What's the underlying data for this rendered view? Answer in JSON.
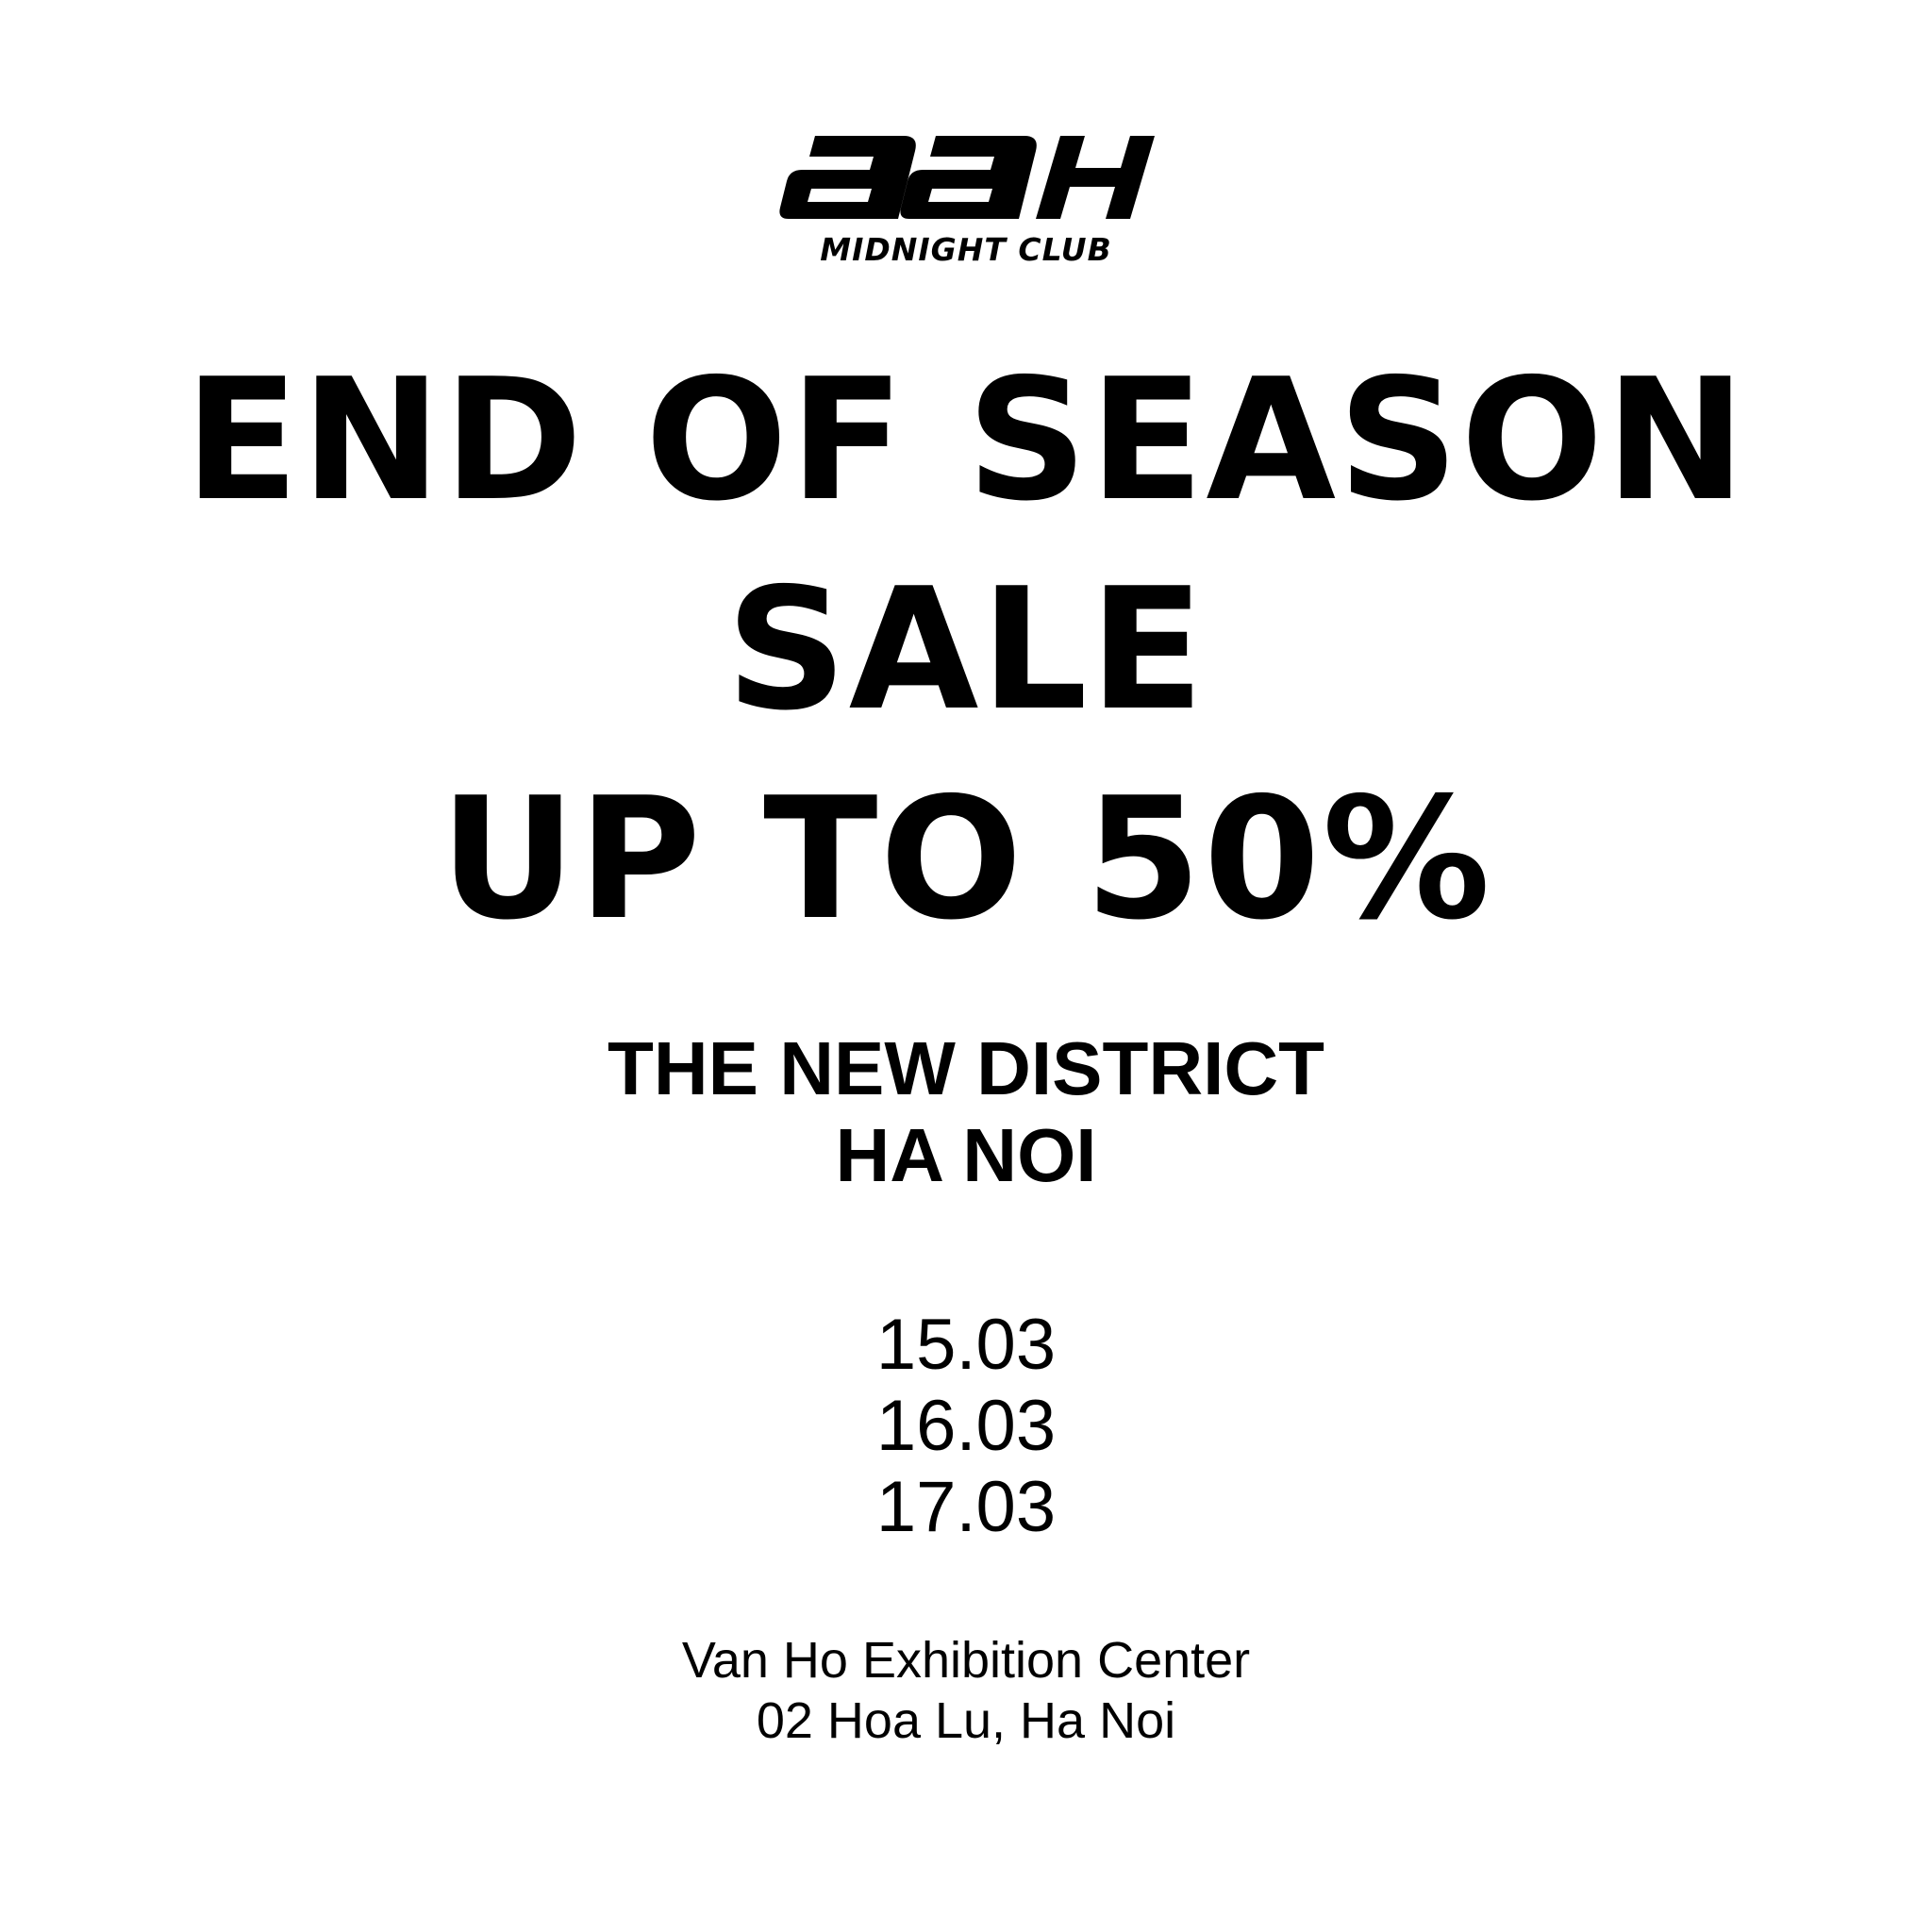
{
  "brand": {
    "logo_wordmark": "aaH",
    "logo_tagline": "MIDNIGHT CLUB"
  },
  "headline": {
    "line1": "END OF SEASON",
    "line2": "SALE",
    "line3": "UP TO 50%"
  },
  "venue": {
    "line1": "THE NEW DISTRICT",
    "line2": "HA NOI"
  },
  "dates": [
    "15.03",
    "16.03",
    "17.03"
  ],
  "address": {
    "line1": "Van Ho Exhibition Center",
    "line2": "02 Hoa Lu, Ha Noi"
  },
  "colors": {
    "background": "#ffffff",
    "text": "#000000"
  }
}
